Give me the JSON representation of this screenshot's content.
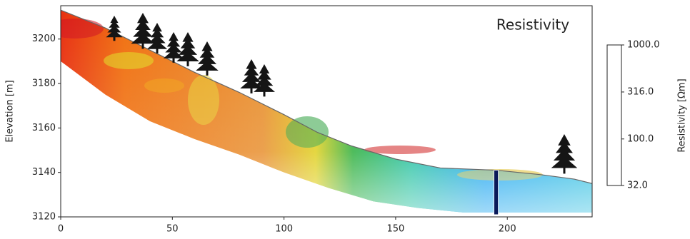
{
  "chart_data": {
    "type": "section",
    "title": "Resistivity",
    "y_label": "Elevation [m]",
    "xlim": [
      0,
      238
    ],
    "xticks": [
      0,
      50,
      100,
      150,
      200
    ],
    "ylim": [
      3120,
      3215
    ],
    "yticks": [
      3120,
      3140,
      3160,
      3180,
      3200
    ],
    "surface": {
      "x": [
        0,
        20,
        40,
        60,
        80,
        100,
        115,
        130,
        150,
        170,
        195,
        215,
        230,
        238
      ],
      "y": [
        3213,
        3205,
        3195,
        3185,
        3176,
        3166,
        3158,
        3152,
        3146,
        3142,
        3141,
        3139,
        3137,
        3135
      ]
    },
    "lower_boundary": {
      "x": [
        0,
        20,
        40,
        60,
        80,
        100,
        120,
        140,
        160,
        180,
        238
      ],
      "y": [
        3190,
        3175,
        3163,
        3155,
        3148,
        3140,
        3133,
        3127,
        3124,
        3122,
        3122
      ]
    },
    "borehole": {
      "x": 195,
      "top": 3141,
      "bottom": 3121
    },
    "colorbar": {
      "label": "Resistivity [Ωm]",
      "log": true,
      "clim": [
        32,
        1000
      ],
      "colors": [
        "#00008b",
        "#0040ff",
        "#00c0ff",
        "#00b050",
        "#e0e000",
        "#f08000",
        "#e00000",
        "#5a0060"
      ],
      "ticks": [
        {
          "value": 1000,
          "label": "1000.0"
        },
        {
          "value": 316,
          "label": "316.0"
        },
        {
          "value": 100,
          "label": "100.0"
        },
        {
          "value": 32,
          "label": "32.0"
        }
      ]
    }
  }
}
